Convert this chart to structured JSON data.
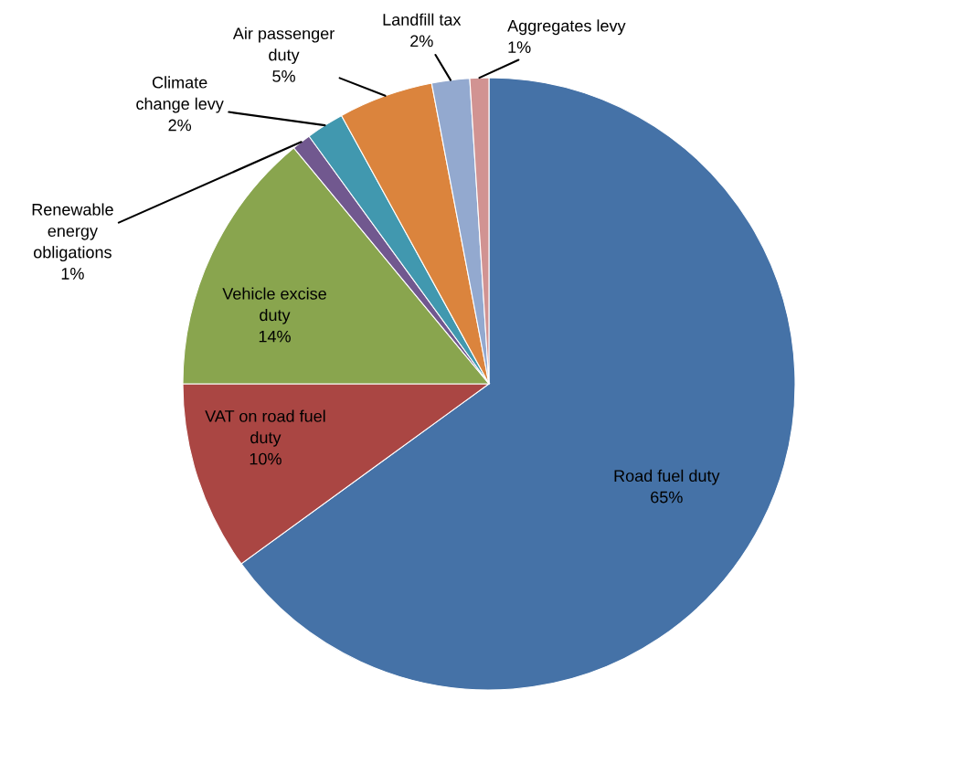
{
  "chart_data": {
    "type": "pie",
    "categories": [
      "Road fuel duty",
      "VAT on road fuel\nduty",
      "Vehicle excise\nduty",
      "Renewable\nenergy\nobligations",
      "Climate\nchange levy",
      "Air passenger\nduty",
      "Landfill tax",
      "Aggregates levy"
    ],
    "values": [
      65,
      10,
      14,
      1,
      2,
      5,
      2,
      1
    ],
    "value_labels": [
      "65%",
      "10%",
      "14%",
      "1%",
      "2%",
      "5%",
      "2%",
      "1%"
    ],
    "colors": [
      "#4572a7",
      "#aa4643",
      "#89a54e",
      "#71588f",
      "#4198af",
      "#db843d",
      "#93a9cf",
      "#d19392"
    ]
  }
}
